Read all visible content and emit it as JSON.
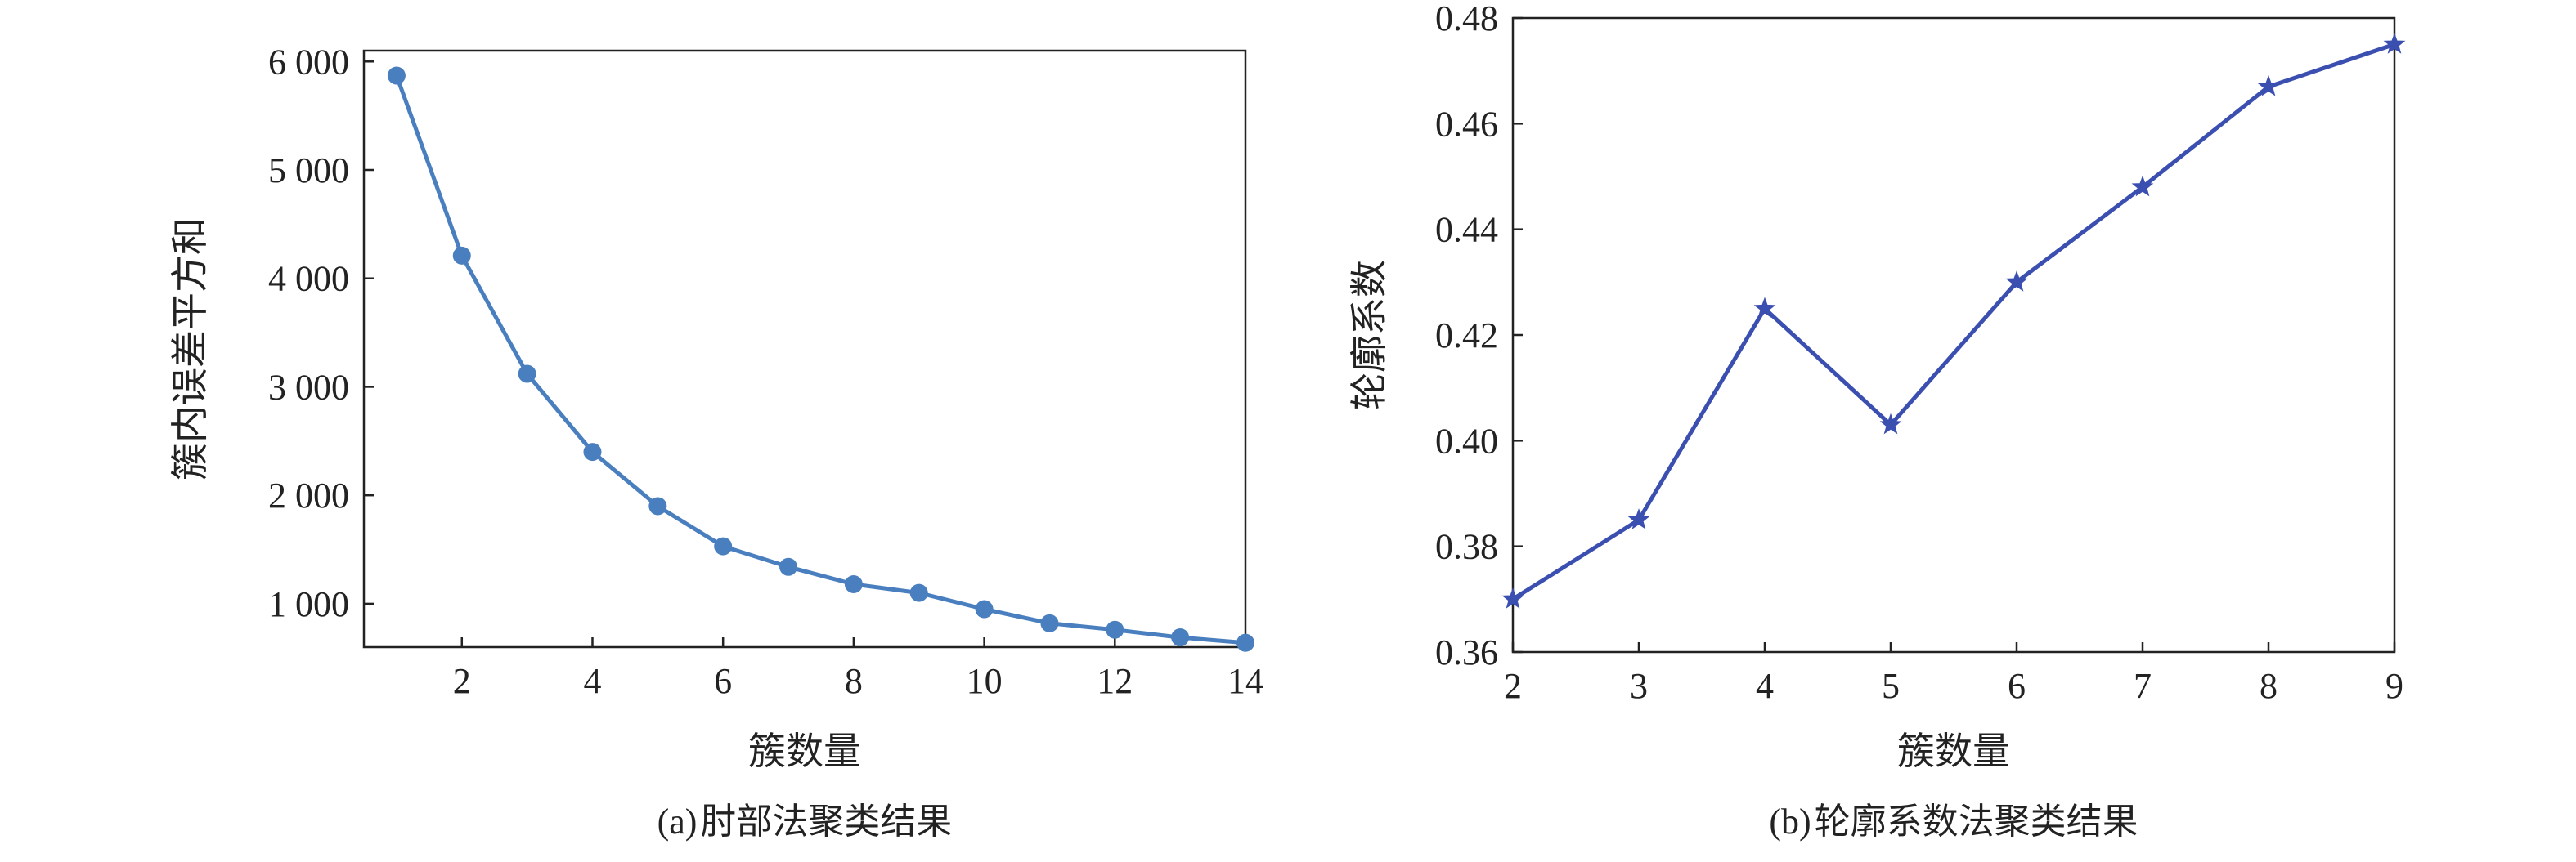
{
  "chart_data": [
    {
      "type": "line",
      "caption_tag": "(a)",
      "caption_text": "肘部法聚类结果",
      "xlabel": "簇数量",
      "ylabel": "簇内误差平方和",
      "xlim": [
        0.5,
        14
      ],
      "ylim": [
        600,
        6100
      ],
      "xticks": [
        2,
        4,
        6,
        8,
        10,
        12,
        14
      ],
      "yticks": [
        1000,
        2000,
        3000,
        4000,
        5000,
        6000
      ],
      "ytick_labels": [
        "1 000",
        "2 000",
        "3 000",
        "4 000",
        "5 000",
        "6 000"
      ],
      "marker": "circle",
      "color": "#4a7fbf",
      "series": [
        {
          "x": [
            1,
            2,
            3,
            4,
            5,
            6,
            7,
            8,
            9,
            10,
            11,
            12,
            13,
            14
          ],
          "values": [
            5870,
            4210,
            3120,
            2400,
            1900,
            1530,
            1340,
            1180,
            1100,
            950,
            820,
            760,
            690,
            640
          ]
        }
      ]
    },
    {
      "type": "line",
      "caption_tag": "(b)",
      "caption_text": "轮廓系数法聚类结果",
      "xlabel": "簇数量",
      "ylabel": "轮廓系数",
      "xlim": [
        2,
        9
      ],
      "ylim": [
        0.36,
        0.48
      ],
      "xticks": [
        2,
        3,
        4,
        5,
        6,
        7,
        8,
        9
      ],
      "yticks": [
        0.36,
        0.38,
        0.4,
        0.42,
        0.44,
        0.46,
        0.48
      ],
      "ytick_labels": [
        "0.36",
        "0.38",
        "0.40",
        "0.42",
        "0.44",
        "0.46",
        "0.48"
      ],
      "marker": "star",
      "color": "#3b4fb0",
      "series": [
        {
          "x": [
            2,
            3,
            4,
            5,
            6,
            7,
            8,
            9
          ],
          "values": [
            0.37,
            0.385,
            0.425,
            0.403,
            0.43,
            0.448,
            0.467,
            0.475
          ]
        }
      ]
    }
  ]
}
